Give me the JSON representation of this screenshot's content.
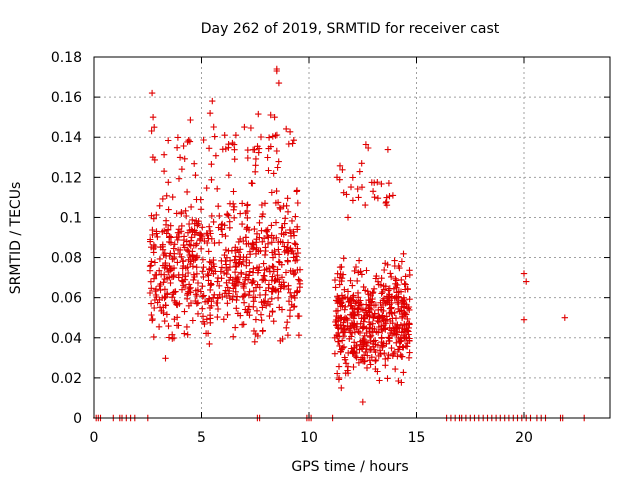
{
  "chart_data": {
    "type": "scatter",
    "title": "Day 262 of 2019, SRMTID for receiver cast",
    "xlabel": "GPS time / hours",
    "ylabel": "SRMTID / TECUs",
    "xlim": [
      0,
      24
    ],
    "ylim": [
      0,
      0.18
    ],
    "x_ticks": [
      0,
      5,
      10,
      15,
      20
    ],
    "x_tick_labels": [
      "0",
      "5",
      "10",
      "15",
      "20"
    ],
    "y_ticks": [
      0,
      0.02,
      0.04,
      0.06,
      0.08,
      0.1,
      0.12,
      0.14,
      0.16,
      0.18
    ],
    "y_tick_labels": [
      "0",
      "0.02",
      "0.04",
      "0.06",
      "0.08",
      "0.1",
      "0.12",
      "0.14",
      "0.16",
      "0.18"
    ],
    "grid": true,
    "marker": "+",
    "series": [
      {
        "name": "SRMTID",
        "color": "#e00000",
        "clusters": [
          {
            "x_range": [
              2.6,
              9.6
            ],
            "y_range": [
              0.025,
              0.125
            ],
            "n": 700
          },
          {
            "x_range": [
              2.6,
              9.3
            ],
            "y_range": [
              0.11,
              0.16
            ],
            "n": 70
          },
          {
            "x_range": [
              11.2,
              14.7
            ],
            "y_range": [
              0.01,
              0.09
            ],
            "n": 500
          },
          {
            "x_range": [
              11.4,
              13.9
            ],
            "y_range": [
              0.09,
              0.14
            ],
            "n": 30
          }
        ],
        "points": [
          [
            2.7,
            0.162
          ],
          [
            5.5,
            0.158
          ],
          [
            8.5,
            0.174
          ],
          [
            8.5,
            0.173
          ],
          [
            8.6,
            0.167
          ],
          [
            2.75,
            0.15
          ],
          [
            2.8,
            0.145
          ],
          [
            8.4,
            0.15
          ],
          [
            5.4,
            0.152
          ],
          [
            6.6,
            0.141
          ],
          [
            11.3,
            0.12
          ],
          [
            11.2,
            0.04
          ],
          [
            11.4,
            0.02
          ],
          [
            11.5,
            0.015
          ],
          [
            12.3,
            0.11
          ],
          [
            12.5,
            0.008
          ],
          [
            13.9,
            0.111
          ],
          [
            20.0,
            0.072
          ],
          [
            20.1,
            0.068
          ],
          [
            20.0,
            0.049
          ],
          [
            21.9,
            0.05
          ]
        ],
        "zero_points": [
          0.1,
          0.2,
          0.3,
          0.9,
          1.2,
          1.3,
          1.5,
          1.7,
          1.9,
          2.5,
          7.6,
          7.7,
          9.9,
          10.0,
          10.1,
          11.1,
          16.4,
          16.6,
          16.8,
          17.0,
          17.1,
          17.3,
          17.5,
          17.7,
          17.9,
          18.1,
          18.3,
          18.5,
          18.7,
          18.9,
          19.1,
          19.3,
          19.5,
          19.7,
          19.9,
          20.1,
          20.3,
          20.6,
          20.8,
          21.0,
          21.7,
          21.8,
          22.8
        ]
      }
    ]
  }
}
